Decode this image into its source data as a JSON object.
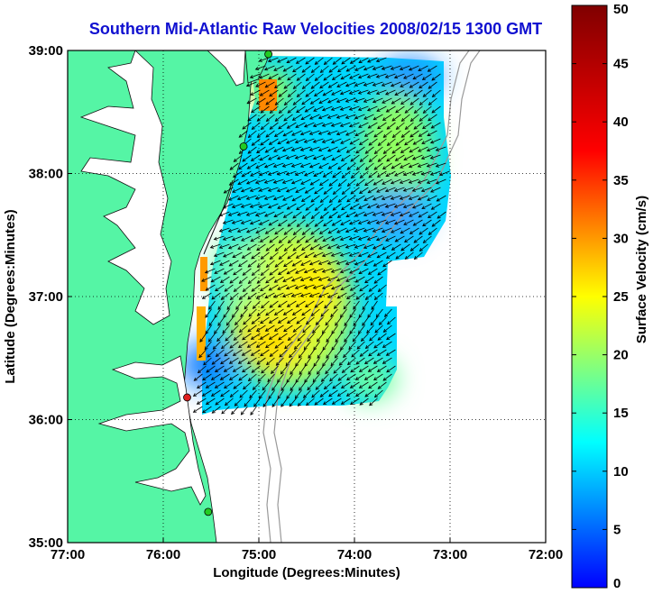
{
  "chart_data": {
    "type": "heatmap",
    "title": "Southern Mid-Atlantic Raw Velocities 2008/02/15 1300 GMT",
    "xlabel": "Longitude (Degrees:Minutes)",
    "ylabel": "Latitude (Degrees:Minutes)",
    "xlim": [
      -77,
      -72
    ],
    "ylim": [
      35,
      39
    ],
    "x_ticks": [
      {
        "value": -77,
        "label": "77:00"
      },
      {
        "value": -76,
        "label": "76:00"
      },
      {
        "value": -75,
        "label": "75:00"
      },
      {
        "value": -74,
        "label": "74:00"
      },
      {
        "value": -73,
        "label": "73:00"
      },
      {
        "value": -72,
        "label": "72:00"
      }
    ],
    "y_ticks": [
      {
        "value": 35,
        "label": "35:00"
      },
      {
        "value": 36,
        "label": "36:00"
      },
      {
        "value": 37,
        "label": "37:00"
      },
      {
        "value": 38,
        "label": "38:00"
      },
      {
        "value": 39,
        "label": "39:00"
      }
    ],
    "grid": true,
    "colorbar": {
      "label": "Surface Velocity (cm/s)",
      "min": 0,
      "max": 50,
      "ticks": [
        {
          "value": 0,
          "label": "0"
        },
        {
          "value": 5,
          "label": "5"
        },
        {
          "value": 10,
          "label": "10"
        },
        {
          "value": 15,
          "label": "15"
        },
        {
          "value": 20,
          "label": "20"
        },
        {
          "value": 25,
          "label": "25"
        },
        {
          "value": 30,
          "label": "30"
        },
        {
          "value": 35,
          "label": "35"
        },
        {
          "value": 40,
          "label": "40"
        },
        {
          "value": 45,
          "label": "45"
        },
        {
          "value": 50,
          "label": "50"
        }
      ]
    },
    "colormap": "jet",
    "flow_direction": "southwest",
    "land_color": "#55f5a5",
    "stations": [
      {
        "lon": -74.9,
        "lat": 38.97,
        "color": "#22cc22"
      },
      {
        "lon": -75.16,
        "lat": 38.22,
        "color": "#22cc22"
      },
      {
        "lon": -75.75,
        "lat": 36.18,
        "color": "#e02020"
      },
      {
        "lon": -75.53,
        "lat": 35.25,
        "color": "#22cc22"
      }
    ],
    "velocity_field": [
      {
        "lon": -74.4,
        "lat": 37.1,
        "speed": 25
      },
      {
        "lon": -74.6,
        "lat": 36.8,
        "speed": 26
      },
      {
        "lon": -74.1,
        "lat": 37.4,
        "speed": 21
      },
      {
        "lon": -75.4,
        "lat": 36.5,
        "speed": 6
      },
      {
        "lon": -75.0,
        "lat": 38.8,
        "speed": 30
      },
      {
        "lon": -73.6,
        "lat": 38.7,
        "speed": 9
      },
      {
        "lon": -73.6,
        "lat": 37.7,
        "speed": 11
      },
      {
        "lon": -75.2,
        "lat": 37.5,
        "speed": 17
      },
      {
        "lon": -75.1,
        "lat": 38.2,
        "speed": 13
      },
      {
        "lon": -73.5,
        "lat": 37.9,
        "speed": 14
      }
    ]
  }
}
